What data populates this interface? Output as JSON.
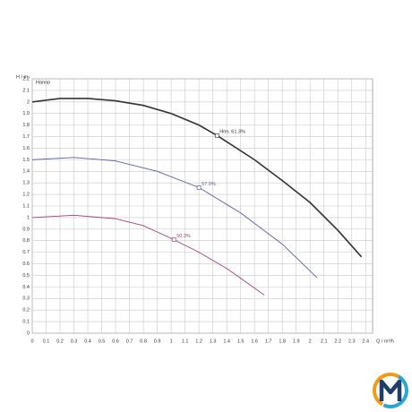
{
  "chart_data": {
    "type": "line",
    "title": "Напор",
    "x_label": "Q / m³/h",
    "y_label": "H / m",
    "xlim": [
      0,
      2.45
    ],
    "ylim": [
      0,
      2.2
    ],
    "xticks": [
      0,
      0.1,
      0.2,
      0.3,
      0.4,
      0.5,
      0.6,
      0.7,
      0.8,
      0.9,
      1,
      1.1,
      1.2,
      1.3,
      1.4,
      1.5,
      1.6,
      1.7,
      1.8,
      1.9,
      2,
      2.1,
      2.2,
      2.3,
      2.4
    ],
    "yticks": [
      0,
      0.1,
      0.2,
      0.3,
      0.4,
      0.5,
      0.6,
      0.7,
      0.8,
      0.9,
      1,
      1.1,
      1.2,
      1.3,
      1.4,
      1.5,
      1.6,
      1.7,
      1.8,
      1.9,
      2,
      2.1,
      2.2
    ],
    "grid": true,
    "series": [
      {
        "color": "#333333",
        "x": [
          0,
          0.2,
          0.4,
          0.6,
          0.8,
          1.0,
          1.2,
          1.33,
          1.6,
          1.8,
          2.0,
          2.2,
          2.37
        ],
        "values": [
          2.0,
          2.03,
          2.03,
          2.01,
          1.97,
          1.9,
          1.8,
          1.71,
          1.5,
          1.32,
          1.13,
          0.89,
          0.66
        ]
      },
      {
        "color": "#5a5ab4",
        "x": [
          0,
          0.3,
          0.6,
          0.9,
          1.2,
          1.5,
          1.8,
          2.05
        ],
        "values": [
          1.5,
          1.52,
          1.49,
          1.4,
          1.26,
          1.04,
          0.77,
          0.48
        ]
      },
      {
        "color": "#a0407a",
        "x": [
          0,
          0.3,
          0.6,
          0.8,
          1.0,
          1.2,
          1.4,
          1.67
        ],
        "values": [
          1.0,
          1.02,
          0.99,
          0.93,
          0.82,
          0.7,
          0.56,
          0.33
        ]
      }
    ],
    "annotations": [
      {
        "x": 1.33,
        "y": 1.71,
        "text": "Ηпп. 61.3%",
        "color": "#333333"
      },
      {
        "x": 1.2,
        "y": 1.26,
        "text": "57.9%",
        "color": "#5a5ab4"
      },
      {
        "x": 1.02,
        "y": 0.81,
        "text": "50.3%",
        "color": "#a0407a"
      }
    ]
  }
}
